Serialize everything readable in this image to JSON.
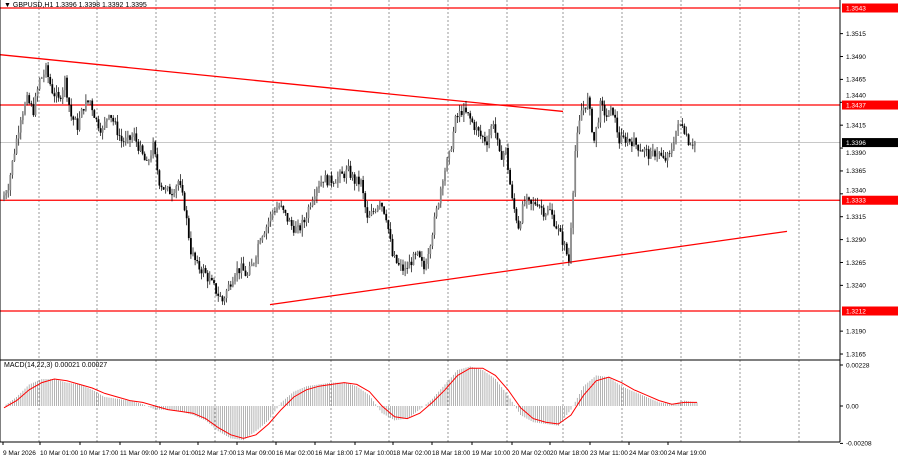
{
  "header": {
    "symbol": "GBPUSD,H1",
    "ohlc": "1.3396 1.3398 1.3392 1.3395",
    "marker": "▼"
  },
  "macd_header": {
    "label": "MACD(14,22,3)",
    "values": "0.00021 0.00027"
  },
  "colors": {
    "level": "#ff0000",
    "bull": "#ffffff",
    "bear": "#000000",
    "wick": "#000000",
    "grid": "#555555",
    "macd_hist": "#a0a0a0",
    "signal": "#ff0000",
    "current_price_bg": "#000000"
  },
  "chart_data": [
    {
      "type": "candlestick",
      "symbol": "GBPUSD",
      "timeframe": "H1",
      "ylim": [
        1.3153,
        1.3552
      ],
      "y_ticks": [
        "1.3515",
        "1.3490",
        "1.3465",
        "1.3440",
        "1.3415",
        "1.3390",
        "1.3365",
        "1.3340",
        "1.3315",
        "1.3290",
        "1.3265",
        "1.3240",
        "1.3190",
        "1.3165"
      ],
      "x_ticks": [
        "9 Mar 2026",
        "10 Mar 01:00",
        "10 Mar 17:00",
        "11 Mar 09:00",
        "12 Mar 01:00",
        "12 Mar 17:00",
        "13 Mar 09:00",
        "16 Mar 02:00",
        "16 Mar 18:00",
        "17 Mar 10:00",
        "18 Mar 02:00",
        "18 Mar 18:00",
        "19 Mar 10:00",
        "20 Mar 02:00",
        "20 Mar 18:00",
        "23 Mar 11:00",
        "24 Mar 03:00",
        "24 Mar 19:00"
      ],
      "current_price": "1.3396",
      "levels": [
        "1.3543",
        "1.3437",
        "1.3333",
        "1.3212"
      ],
      "trendlines": [
        {
          "from": [
            "9 Mar 2026",
            1.3492
          ],
          "to": [
            "20 Mar 18:00",
            1.343
          ]
        },
        {
          "from": [
            "13 Mar 09:00+",
            1.3219
          ],
          "to": [
            "after 24 Mar 19:00",
            1.3299
          ]
        }
      ],
      "close_approx": [
        1.3333,
        1.3349,
        1.3387,
        1.3425,
        1.3442,
        1.3431,
        1.3464,
        1.3475,
        1.3453,
        1.3442,
        1.3464,
        1.3425,
        1.3414,
        1.3436,
        1.3442,
        1.342,
        1.3409,
        1.3431,
        1.3414,
        1.3398,
        1.3398,
        1.3403,
        1.3387,
        1.3371,
        1.3392,
        1.3354,
        1.3343,
        1.3343,
        1.3354,
        1.3327,
        1.3278,
        1.3261,
        1.3256,
        1.3245,
        1.3234,
        1.3223,
        1.3239,
        1.3256,
        1.3258,
        1.325,
        1.3267,
        1.3294,
        1.3305,
        1.3321,
        1.3327,
        1.3316,
        1.3305,
        1.33,
        1.331,
        1.3332,
        1.3349,
        1.3357,
        1.3354,
        1.3357,
        1.336,
        1.3365,
        1.3354,
        1.3352,
        1.3311,
        1.3321,
        1.3334,
        1.3316,
        1.3272,
        1.3261,
        1.3256,
        1.3267,
        1.3272,
        1.3258,
        1.3289,
        1.3321,
        1.336,
        1.3381,
        1.342,
        1.3431,
        1.3425,
        1.3414,
        1.3403,
        1.3398,
        1.342,
        1.3381,
        1.3387,
        1.3332,
        1.3305,
        1.3332,
        1.3327,
        1.3332,
        1.3321,
        1.3321,
        1.3305,
        1.3289,
        1.3267,
        1.3387,
        1.3431,
        1.3442,
        1.3398,
        1.3436,
        1.3425,
        1.3431,
        1.3398,
        1.34,
        1.3398,
        1.3392,
        1.3387,
        1.3381,
        1.3387,
        1.3376,
        1.3381,
        1.3409,
        1.3418,
        1.3398,
        1.3396
      ]
    },
    {
      "type": "bar+line",
      "name": "MACD(14,22,3)",
      "ylim": [
        -0.00208,
        0.00228
      ],
      "y_ticks": [
        "0.00228",
        "0.00",
        "-0.00208"
      ],
      "histogram_approx": [
        0.0,
        0.0005,
        0.0012,
        0.0015,
        0.0015,
        0.0013,
        0.0012,
        0.0009,
        0.0005,
        0.0004,
        0.0003,
        0.0001,
        -0.0002,
        -0.0002,
        -0.0003,
        -0.0005,
        -0.0008,
        -0.0014,
        -0.0018,
        -0.0019,
        -0.0014,
        -0.0008,
        0.0002,
        0.0008,
        0.0011,
        0.0012,
        0.0013,
        0.0013,
        0.0011,
        0.0006,
        -0.0004,
        -0.0008,
        -0.0007,
        -0.0002,
        0.0004,
        0.0012,
        0.002,
        0.0022,
        0.002,
        0.0015,
        0.0006,
        -0.0005,
        -0.0009,
        -0.001,
        -0.0011,
        -0.0002,
        0.0011,
        0.0017,
        0.0016,
        0.0011,
        0.0008,
        0.0005,
        0.0002,
        0.0001,
        0.0003,
        0.0002
      ],
      "signal_approx": [
        -0.0001,
        0.0003,
        0.0009,
        0.0013,
        0.0015,
        0.0014,
        0.0012,
        0.001,
        0.0007,
        0.0005,
        0.0003,
        0.0002,
        0.0,
        -0.0002,
        -0.0003,
        -0.0004,
        -0.0007,
        -0.0012,
        -0.0016,
        -0.0018,
        -0.0016,
        -0.001,
        -0.0002,
        0.0005,
        0.0009,
        0.0011,
        0.0012,
        0.0013,
        0.0012,
        0.0008,
        0.0,
        -0.0006,
        -0.0007,
        -0.0004,
        0.0002,
        0.0009,
        0.0017,
        0.0021,
        0.0021,
        0.0017,
        0.0009,
        -0.0001,
        -0.0007,
        -0.0009,
        -0.001,
        -0.0005,
        0.0006,
        0.0014,
        0.0016,
        0.0013,
        0.0009,
        0.0006,
        0.0003,
        0.0001,
        0.0002,
        0.0002
      ]
    }
  ]
}
